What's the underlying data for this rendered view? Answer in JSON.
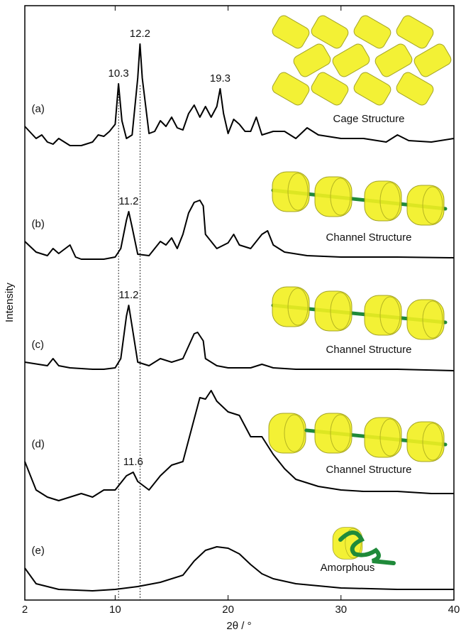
{
  "chart_data": {
    "type": "line",
    "xlabel": "2θ / °",
    "ylabel": "Intensity",
    "xlim": [
      2,
      40
    ],
    "xticks": [
      2,
      10,
      20,
      30,
      40
    ],
    "ylim": [
      0,
      837
    ],
    "vlines": [
      10.3,
      12.2
    ],
    "series": [
      {
        "name": "(a)",
        "color": "#000000",
        "structure": "Cage Structure",
        "peaks": [
          10.3,
          12.2,
          19.3
        ],
        "x": [
          2,
          3,
          3.5,
          4,
          4.5,
          5,
          6,
          7,
          8,
          8.5,
          9,
          9.5,
          10,
          10.3,
          10.6,
          11,
          11.5,
          12,
          12.2,
          12.4,
          13,
          13.5,
          14,
          14.5,
          15,
          15.5,
          16,
          16.5,
          17,
          17.5,
          18,
          18.5,
          19,
          19.3,
          19.6,
          20,
          20.5,
          21,
          21.5,
          22,
          22.5,
          23,
          24,
          25,
          26,
          27,
          28,
          30,
          32,
          34,
          35,
          36,
          38,
          40
        ],
        "values": [
          667,
          650,
          655,
          645,
          642,
          650,
          640,
          640,
          645,
          655,
          653,
          660,
          670,
          727,
          675,
          650,
          655,
          735,
          783,
          735,
          657,
          660,
          675,
          667,
          680,
          665,
          662,
          685,
          697,
          680,
          695,
          680,
          695,
          720,
          685,
          657,
          677,
          670,
          660,
          660,
          680,
          655,
          660,
          660,
          650,
          665,
          655,
          650,
          650,
          645,
          655,
          647,
          645,
          650
        ]
      },
      {
        "name": "(b)",
        "color": "#000000",
        "structure": "Channel Structure",
        "peaks": [
          11.2
        ],
        "x": [
          2,
          3,
          4,
          4.5,
          5,
          6,
          6.5,
          7,
          8,
          9,
          10,
          10.5,
          11,
          11.2,
          11.5,
          12,
          13,
          14,
          14.5,
          15,
          15.5,
          16,
          16.5,
          17,
          17.5,
          17.8,
          18,
          19,
          20,
          20.5,
          21,
          22,
          23,
          23.5,
          24,
          25,
          27,
          30,
          35,
          40
        ],
        "values": [
          505,
          490,
          485,
          495,
          488,
          500,
          483,
          480,
          480,
          480,
          483,
          495,
          535,
          547,
          525,
          487,
          485,
          505,
          500,
          510,
          495,
          515,
          545,
          560,
          563,
          555,
          515,
          495,
          503,
          515,
          500,
          495,
          515,
          520,
          500,
          490,
          485,
          483,
          483,
          482
        ]
      },
      {
        "name": "(c)",
        "color": "#000000",
        "structure": "Channel Structure",
        "peaks": [
          11.2
        ],
        "x": [
          2,
          4,
          4.5,
          5,
          6,
          8,
          9,
          10,
          10.5,
          11,
          11.2,
          11.5,
          12,
          13,
          14,
          15,
          16,
          17,
          17.3,
          17.8,
          18,
          19,
          20,
          22,
          23,
          24,
          26,
          30,
          35,
          40
        ],
        "values": [
          335,
          330,
          340,
          330,
          327,
          325,
          325,
          327,
          340,
          400,
          415,
          385,
          335,
          330,
          340,
          335,
          340,
          375,
          377,
          365,
          340,
          330,
          327,
          327,
          332,
          327,
          325,
          325,
          325,
          323
        ]
      },
      {
        "name": "(d)",
        "color": "#000000",
        "structure": "Channel Structure",
        "peaks": [
          11.6
        ],
        "x": [
          2,
          3,
          4,
          5,
          6,
          7,
          8,
          9,
          10,
          11,
          11.6,
          12,
          13,
          14,
          15,
          16,
          17,
          17.5,
          18,
          18.5,
          19,
          20,
          21,
          22,
          23,
          24,
          25,
          26,
          28,
          30,
          32,
          35,
          38,
          40
        ],
        "values": [
          195,
          155,
          145,
          140,
          145,
          150,
          145,
          155,
          155,
          175,
          180,
          167,
          155,
          175,
          190,
          195,
          255,
          285,
          283,
          295,
          280,
          265,
          260,
          230,
          230,
          205,
          185,
          170,
          160,
          155,
          153,
          153,
          150,
          150
        ]
      },
      {
        "name": "(e)",
        "color": "#000000",
        "structure": "Amorphous",
        "peaks": [],
        "x": [
          2,
          3,
          5,
          8,
          10,
          12,
          14,
          16,
          17,
          18,
          19,
          20,
          21,
          22,
          23,
          24,
          26,
          30,
          35,
          40
        ],
        "values": [
          45,
          23,
          15,
          13,
          15,
          19,
          25,
          35,
          55,
          70,
          75,
          73,
          65,
          50,
          37,
          30,
          23,
          17,
          15,
          15
        ]
      }
    ]
  }
}
